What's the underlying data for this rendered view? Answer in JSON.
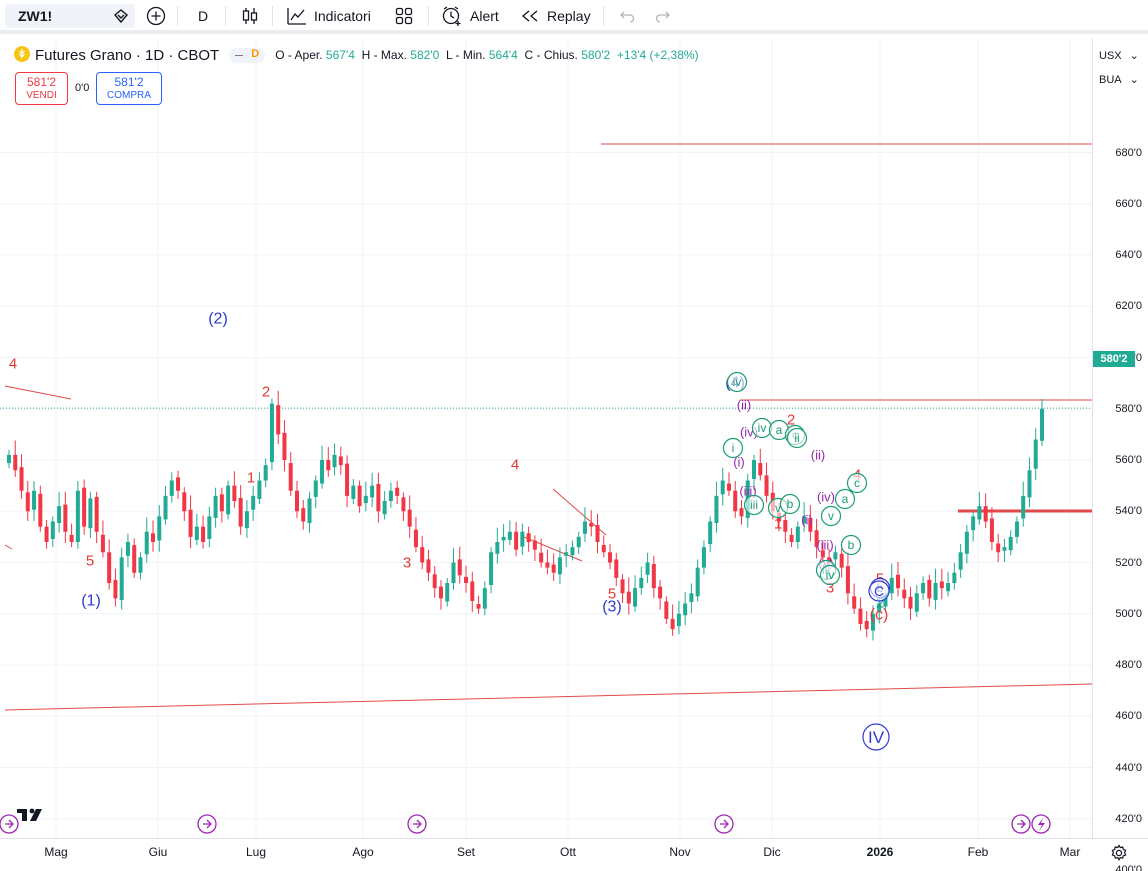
{
  "toolbar": {
    "symbol": "ZW1!",
    "interval": "D",
    "indicators_label": "Indicatori",
    "alert_label": "Alert",
    "replay_label": "Replay"
  },
  "legend": {
    "title": "Futures Grano · 1D · CBOT",
    "badge": "D",
    "open_label": "O - Aper.",
    "open": "567'4",
    "high_label": "H - Max.",
    "high": "582'0",
    "low_label": "L - Min.",
    "low": "564'4",
    "close_label": "C - Chius.",
    "close": "580'2",
    "change": "+13'4 (+2,38%)"
  },
  "trade": {
    "sell_price": "581'2",
    "sell_label": "VENDI",
    "spread": "0'0",
    "buy_price": "581'2",
    "buy_label": "COMPRA"
  },
  "price_scale": {
    "currency": "USX",
    "unit": "BUA",
    "last_price": "580'2",
    "ticks": [
      "680'0",
      "660'0",
      "640'0",
      "620'0",
      "600'0",
      "580'0",
      "560'0",
      "540'0",
      "520'0",
      "500'0",
      "480'0",
      "460'0",
      "440'0",
      "420'0",
      "400'0"
    ]
  },
  "time_scale": {
    "labels": [
      "Mag",
      "Giu",
      "Lug",
      "Ago",
      "Set",
      "Ott",
      "Nov",
      "Dic",
      "2026",
      "Feb",
      "Mar"
    ]
  },
  "colors": {
    "up": "#22ab94",
    "down": "#f23645",
    "wave_blue": "#2e3ad1",
    "wave_red": "#e53935",
    "wave_purple": "#9c27b0",
    "wave_green": "#1b9e77"
  },
  "chart_data": {
    "type": "candlestick",
    "symbol": "ZW1!",
    "ylim": [
      400,
      690
    ],
    "last_close": 580.25,
    "closes": [
      562,
      556,
      548,
      540,
      548,
      534,
      528,
      536,
      542,
      532,
      528,
      548,
      534,
      545,
      532,
      524,
      512,
      506,
      522,
      528,
      516,
      522,
      532,
      528,
      538,
      546,
      552,
      548,
      540,
      530,
      534,
      528,
      538,
      546,
      540,
      550,
      544,
      534,
      540,
      546,
      552,
      558,
      582,
      570,
      560,
      548,
      540,
      536,
      545,
      552,
      560,
      556,
      562,
      558,
      546,
      550,
      542,
      546,
      550,
      540,
      544,
      548,
      546,
      540,
      534,
      526,
      520,
      516,
      510,
      506,
      512,
      520,
      515,
      512,
      505,
      502,
      510,
      524,
      528,
      530,
      532,
      525,
      532,
      528,
      525,
      520,
      518,
      516,
      522,
      524,
      526,
      530,
      536,
      534,
      528,
      524,
      520,
      514,
      508,
      504,
      510,
      514,
      520,
      510,
      506,
      498,
      494,
      500,
      504,
      508,
      518,
      526,
      536,
      546,
      552,
      548,
      540,
      538,
      552,
      560,
      554,
      546,
      540,
      536,
      532,
      528,
      534,
      538,
      532,
      526,
      522,
      520,
      524,
      518,
      508,
      502,
      496,
      494,
      500,
      504,
      508,
      514,
      510,
      506,
      502,
      508,
      512,
      506,
      512,
      510,
      512,
      516,
      524,
      532,
      538,
      542,
      536,
      528,
      524,
      526,
      530,
      536,
      546,
      556,
      568,
      580
    ]
  }
}
